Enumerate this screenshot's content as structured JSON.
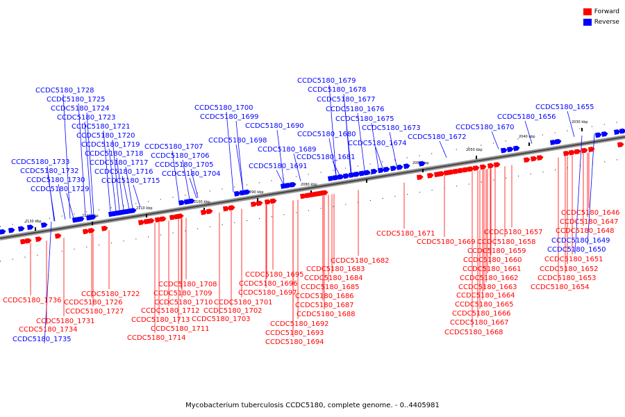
{
  "legend": {
    "forward_label": "Forward",
    "reverse_label": "Reverse",
    "forward_color": "#ff0000",
    "reverse_color": "#0000ff"
  },
  "caption": "Mycobacterium tuberculosis CCDC5180, complete genome. - 0..4405981",
  "ticks": [
    "2030 kbp",
    "2040 kbp",
    "2050 kbp",
    "2060 kbp",
    "2070 kbp",
    "2080 kbp",
    "2090 kbp",
    "2100 kbp",
    "2110 kbp",
    "2120 kbp",
    "2130 kbp"
  ],
  "reverse_genes": [
    "CCDC5180_1728",
    "CCDC5180_1725",
    "CCDC5180_1724",
    "CCDC5180_1723",
    "CCDC5180_1721",
    "CCDC5180_1720",
    "CCDC5180_1719",
    "CCDC5180_1718",
    "CCDC5180_1717",
    "CCDC5180_1716",
    "CCDC5180_1715",
    "CCDC5180_1733",
    "CCDC5180_1732",
    "CCDC5180_1730",
    "CCDC5180_1729",
    "CCDC5180_1707",
    "CCDC5180_1706",
    "CCDC5180_1705",
    "CCDC5180_1704",
    "CCDC5180_1700",
    "CCDC5180_1699",
    "CCDC5180_1698",
    "CCDC5180_1690",
    "CCDC5180_1689",
    "CCDC5180_1691",
    "CCDC5180_1679",
    "CCDC5180_1678",
    "CCDC5180_1677",
    "CCDC5180_1676",
    "CCDC5180_1675",
    "CCDC5180_1673",
    "CCDC5180_1680",
    "CCDC5180_1681",
    "CCDC5180_1674",
    "CCDC5180_1672",
    "CCDC5180_1670",
    "CCDC5180_1656",
    "CCDC5180_1655",
    "CCDC5180_1649",
    "CCDC5180_1650",
    "CCDC5180_1735"
  ],
  "forward_genes": [
    "CCDC5180_1646",
    "CCDC5180_1647",
    "CCDC5180_1648",
    "CCDC5180_1651",
    "CCDC5180_1652",
    "CCDC5180_1653",
    "CCDC5180_1654",
    "CCDC5180_1671",
    "CCDC5180_1669",
    "CCDC5180_1657",
    "CCDC5180_1658",
    "CCDC5180_1659",
    "CCDC5180_1660",
    "CCDC5180_1661",
    "CCDC5180_1662",
    "CCDC5180_1663",
    "CCDC5180_1664",
    "CCDC5180_1665",
    "CCDC5180_1666",
    "CCDC5180_1667",
    "CCDC5180_1668",
    "CCDC5180_1682",
    "CCDC5180_1683",
    "CCDC5180_1684",
    "CCDC5180_1685",
    "CCDC5180_1686",
    "CCDC5180_1687",
    "CCDC5180_1688",
    "CCDC5180_1695",
    "CCDC5180_1696",
    "CCDC5180_1697",
    "CCDC5180_1692",
    "CCDC5180_1693",
    "CCDC5180_1694",
    "CCDC5180_1708",
    "CCDC5180_1709",
    "CCDC5180_1710",
    "CCDC5180_1712",
    "CCDC5180_1713",
    "CCDC5180_1711",
    "CCDC5180_1714",
    "CCDC5180_1701",
    "CCDC5180_1702",
    "CCDC5180_1703",
    "CCDC5180_1722",
    "CCDC5180_1726",
    "CCDC5180_1727",
    "CCDC5180_1736",
    "CCDC5180_1731",
    "CCDC5180_1734"
  ]
}
